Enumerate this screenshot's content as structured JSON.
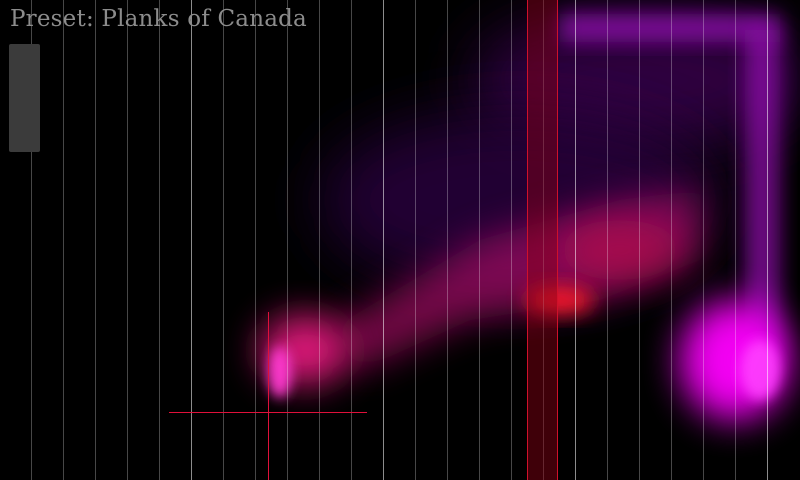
{
  "header": {
    "preset_label": "Preset: Planks of Canada"
  },
  "colors": {
    "background": "#000000",
    "glow_magenta": "#ff00ff",
    "glow_pink": "#ff1a8c",
    "glow_red": "#ff1a1a",
    "playhead": "#d0102a",
    "crosshair": "#e0103a",
    "grid": "#ffffff",
    "title_text": "#8c8c8c",
    "panel": "#3b3b3b"
  },
  "icons": {
    "crosshair": "crosshair-icon"
  }
}
